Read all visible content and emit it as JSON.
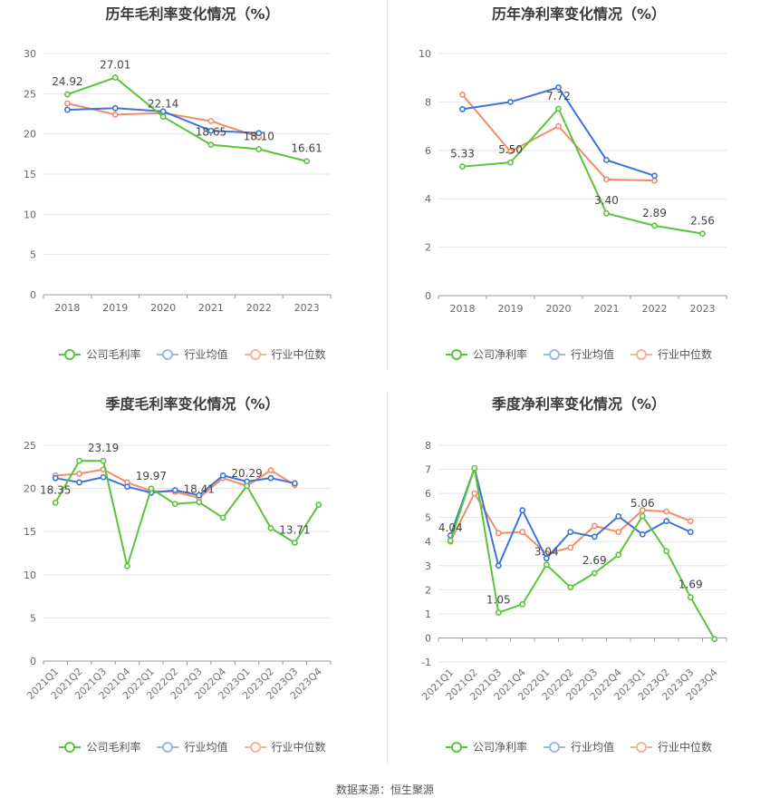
{
  "colors": {
    "company": "#5ac43b",
    "avg": "#3d74d9",
    "median": "#f28c6a"
  },
  "legend_common": {
    "avg": "行业均值",
    "median": "行业中位数"
  },
  "source": "数据来源：恒生聚源",
  "chart_data": [
    {
      "id": "annual_gross",
      "type": "line",
      "title": "历年毛利率变化情况（%）",
      "legend_company": "公司毛利率",
      "categories": [
        "2018",
        "2019",
        "2020",
        "2021",
        "2022",
        "2023"
      ],
      "ylim": [
        0,
        30
      ],
      "yticks": [
        0,
        5,
        10,
        15,
        20,
        25,
        30
      ],
      "series": [
        {
          "name": "公司毛利率",
          "key": "company",
          "values": [
            24.92,
            27.01,
            22.14,
            18.65,
            18.1,
            16.61
          ]
        },
        {
          "name": "行业均值",
          "key": "avg",
          "values": [
            23.0,
            23.2,
            22.8,
            20.4,
            20.1,
            null
          ]
        },
        {
          "name": "行业中位数",
          "key": "median",
          "values": [
            23.8,
            22.4,
            22.6,
            21.6,
            19.6,
            null
          ]
        }
      ],
      "labels": [
        "24.92",
        "27.01",
        "22.14",
        "18.65",
        "18.10",
        "16.61"
      ],
      "rotate_x": false
    },
    {
      "id": "annual_net",
      "type": "line",
      "title": "历年净利率变化情况（%）",
      "legend_company": "公司净利率",
      "categories": [
        "2018",
        "2019",
        "2020",
        "2021",
        "2022",
        "2023"
      ],
      "ylim": [
        0,
        10
      ],
      "yticks": [
        0,
        2,
        4,
        6,
        8,
        10
      ],
      "series": [
        {
          "name": "公司净利率",
          "key": "company",
          "values": [
            5.33,
            5.5,
            7.72,
            3.4,
            2.89,
            2.56
          ]
        },
        {
          "name": "行业均值",
          "key": "avg",
          "values": [
            7.7,
            8.0,
            8.6,
            5.6,
            4.95,
            null
          ]
        },
        {
          "name": "行业中位数",
          "key": "median",
          "values": [
            8.3,
            5.95,
            7.0,
            4.8,
            4.75,
            null
          ]
        }
      ],
      "labels": [
        "5.33",
        "5.50",
        "7.72",
        "3.40",
        "2.89",
        "2.56"
      ],
      "rotate_x": false
    },
    {
      "id": "quarterly_gross",
      "type": "line",
      "title": "季度毛利率变化情况（%）",
      "legend_company": "公司毛利率",
      "categories": [
        "2021Q1",
        "2021Q2",
        "2021Q3",
        "2021Q4",
        "2022Q1",
        "2022Q2",
        "2022Q3",
        "2022Q4",
        "2023Q1",
        "2023Q2",
        "2023Q3",
        "2023Q4"
      ],
      "ylim": [
        0,
        25
      ],
      "yticks": [
        0,
        5,
        10,
        15,
        20,
        25
      ],
      "series": [
        {
          "name": "公司毛利率",
          "key": "company",
          "values": [
            18.35,
            23.2,
            23.19,
            11.0,
            19.97,
            18.2,
            18.41,
            16.6,
            20.29,
            15.4,
            13.71,
            18.1
          ]
        },
        {
          "name": "行业均值",
          "key": "avg",
          "values": [
            21.2,
            20.7,
            21.3,
            20.2,
            19.5,
            19.8,
            19.2,
            21.5,
            20.8,
            21.2,
            20.6,
            null
          ]
        },
        {
          "name": "行业中位数",
          "key": "median",
          "values": [
            21.5,
            21.7,
            22.2,
            20.7,
            19.7,
            19.6,
            18.9,
            21.2,
            20.3,
            22.1,
            20.4,
            null
          ]
        }
      ],
      "labels": [
        "18.35",
        null,
        "23.19",
        null,
        "19.97",
        null,
        "18.41",
        null,
        "20.29",
        null,
        "13.71",
        null
      ],
      "rotate_x": true
    },
    {
      "id": "quarterly_net",
      "type": "line",
      "title": "季度净利率变化情况（%）",
      "legend_company": "公司净利率",
      "categories": [
        "2021Q1",
        "2021Q2",
        "2021Q3",
        "2021Q4",
        "2022Q1",
        "2022Q2",
        "2022Q3",
        "2022Q4",
        "2023Q1",
        "2023Q2",
        "2023Q3",
        "2023Q4"
      ],
      "ylim": [
        -1,
        8
      ],
      "yticks": [
        -1,
        0,
        1,
        2,
        3,
        4,
        5,
        6,
        7,
        8
      ],
      "series": [
        {
          "name": "公司净利率",
          "key": "company",
          "values": [
            4.04,
            7.05,
            1.05,
            1.4,
            3.04,
            2.1,
            2.69,
            3.45,
            5.06,
            3.6,
            1.69,
            -0.05
          ]
        },
        {
          "name": "行业均值",
          "key": "avg",
          "values": [
            4.25,
            7.05,
            3.0,
            5.3,
            3.3,
            4.4,
            4.2,
            5.05,
            4.3,
            4.85,
            4.4,
            null
          ]
        },
        {
          "name": "行业中位数",
          "key": "median",
          "values": [
            4.0,
            6.0,
            4.35,
            4.4,
            3.5,
            3.75,
            4.65,
            4.4,
            5.3,
            5.25,
            4.85,
            null
          ]
        }
      ],
      "labels": [
        "4.04",
        null,
        "1.05",
        null,
        "3.04",
        null,
        "2.69",
        null,
        "5.06",
        null,
        "1.69",
        null
      ],
      "rotate_x": true
    }
  ]
}
